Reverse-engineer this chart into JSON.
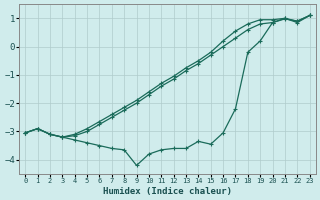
{
  "xlabel": "Humidex (Indice chaleur)",
  "bg_color": "#d0ecec",
  "grid_color": "#b0cccc",
  "line_color": "#1a6b5a",
  "xlim": [
    -0.5,
    23.5
  ],
  "ylim": [
    -4.5,
    1.5
  ],
  "yticks": [
    -4,
    -3,
    -2,
    -1,
    0,
    1
  ],
  "xticks": [
    0,
    1,
    2,
    3,
    4,
    5,
    6,
    7,
    8,
    9,
    10,
    11,
    12,
    13,
    14,
    15,
    16,
    17,
    18,
    19,
    20,
    21,
    22,
    23
  ],
  "line1_x": [
    0,
    1,
    2,
    3,
    4,
    5,
    6,
    7,
    8,
    9,
    10,
    11,
    12,
    13,
    14,
    15,
    16,
    17,
    18,
    19,
    20,
    21,
    22,
    23
  ],
  "line1_y": [
    -3.05,
    -2.9,
    -3.1,
    -3.2,
    -3.3,
    -3.4,
    -3.5,
    -3.6,
    -3.65,
    -4.2,
    -3.8,
    -3.65,
    -3.6,
    -3.6,
    -3.35,
    -3.45,
    -3.05,
    -2.2,
    -0.2,
    0.2,
    0.85,
    1.0,
    0.85,
    1.1
  ],
  "line2_x": [
    0,
    1,
    2,
    3,
    4,
    5,
    6,
    7,
    8,
    9,
    10,
    11,
    12,
    13,
    14,
    15,
    16,
    17,
    18,
    19,
    20,
    21,
    22,
    23
  ],
  "line2_y": [
    -3.05,
    -2.9,
    -3.1,
    -3.2,
    -3.1,
    -2.9,
    -2.65,
    -2.4,
    -2.15,
    -1.9,
    -1.6,
    -1.3,
    -1.05,
    -0.75,
    -0.5,
    -0.2,
    0.2,
    0.55,
    0.8,
    0.95,
    0.95,
    1.0,
    0.9,
    1.1
  ],
  "line3_x": [
    0,
    1,
    2,
    3,
    4,
    5,
    6,
    7,
    8,
    9,
    10,
    11,
    12,
    13,
    14,
    15,
    16,
    17,
    18,
    19,
    20,
    21,
    22,
    23
  ],
  "line3_y": [
    -3.05,
    -2.9,
    -3.1,
    -3.2,
    -3.15,
    -3.0,
    -2.75,
    -2.5,
    -2.25,
    -2.0,
    -1.7,
    -1.4,
    -1.15,
    -0.85,
    -0.6,
    -0.3,
    0.0,
    0.3,
    0.6,
    0.8,
    0.85,
    0.98,
    0.9,
    1.1
  ]
}
